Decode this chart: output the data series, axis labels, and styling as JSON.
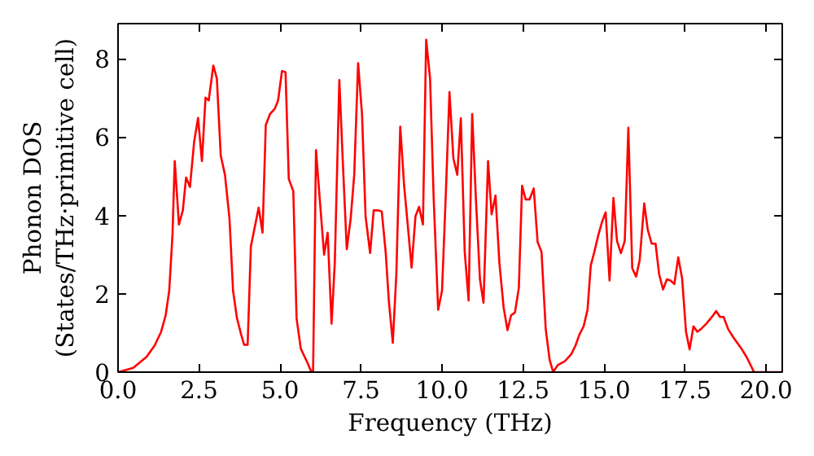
{
  "chart_data": {
    "type": "line",
    "xlabel": "Frequency (THz)",
    "ylabel": "Phonon DOS\n(States/THz·primitive cell)",
    "xlim": [
      0,
      20.5
    ],
    "ylim": [
      0,
      8.9
    ],
    "xticks": [
      {
        "value": 0,
        "label": "0.0"
      },
      2.5,
      {
        "value": 5,
        "label": "5.0"
      },
      7.5,
      {
        "value": 10,
        "label": "10.0"
      },
      12.5,
      {
        "value": 15,
        "label": "15.0"
      },
      17.5,
      {
        "value": 20,
        "label": "20.0"
      }
    ],
    "yticks": [
      0,
      2,
      4,
      6,
      8
    ],
    "grid": false,
    "marker": "none",
    "line_style": "solid",
    "series": [
      {
        "color": "#ff0000",
        "x": [
          0,
          0.47,
          0.88,
          1.13,
          1.33,
          1.47,
          1.58,
          1.68,
          1.75,
          1.88,
          2.0,
          2.1,
          2.22,
          2.35,
          2.47,
          2.59,
          2.7,
          2.8,
          2.94,
          3.05,
          3.17,
          3.3,
          3.44,
          3.55,
          3.67,
          3.8,
          3.89,
          4.0,
          4.1,
          4.22,
          4.34,
          4.46,
          4.56,
          4.69,
          4.84,
          4.94,
          5.06,
          5.17,
          5.27,
          5.41,
          5.51,
          5.64,
          5.84,
          5.97,
          6.02,
          6.11,
          6.22,
          6.36,
          6.47,
          6.59,
          6.69,
          6.83,
          6.94,
          7.06,
          7.18,
          7.29,
          7.41,
          7.53,
          7.64,
          7.78,
          7.89,
          8.03,
          8.14,
          8.26,
          8.36,
          8.48,
          8.59,
          8.71,
          8.83,
          8.94,
          9.06,
          9.18,
          9.29,
          9.41,
          9.51,
          9.63,
          9.74,
          9.88,
          10.0,
          10.12,
          10.23,
          10.35,
          10.47,
          10.58,
          10.7,
          10.82,
          10.93,
          11.05,
          11.17,
          11.28,
          11.42,
          11.53,
          11.65,
          11.77,
          11.9,
          12.02,
          12.13,
          12.25,
          12.37,
          12.47,
          12.58,
          12.7,
          12.83,
          12.95,
          13.07,
          13.2,
          13.32,
          13.43,
          13.57,
          13.79,
          13.99,
          14.12,
          14.24,
          14.37,
          14.49,
          14.59,
          14.7,
          14.82,
          14.94,
          15.05,
          15.17,
          15.29,
          15.4,
          15.52,
          15.64,
          15.75,
          15.87,
          15.99,
          16.1,
          16.24,
          16.35,
          16.47,
          16.59,
          16.7,
          16.82,
          16.94,
          17.05,
          17.17,
          17.29,
          17.41,
          17.53,
          17.64,
          17.76,
          17.88,
          17.99,
          18.16,
          18.33,
          18.46,
          18.58,
          18.69,
          18.83,
          18.99,
          19.24,
          19.41,
          19.63,
          20.5
        ],
        "values": [
          0,
          0.11,
          0.39,
          0.68,
          1.03,
          1.45,
          2.08,
          3.49,
          5.39,
          3.77,
          4.13,
          4.97,
          4.73,
          5.89,
          6.49,
          5.39,
          7.01,
          6.94,
          7.83,
          7.5,
          5.53,
          5.04,
          3.92,
          2.08,
          1.38,
          0.96,
          0.7,
          0.7,
          3.21,
          3.7,
          4.2,
          3.56,
          6.31,
          6.59,
          6.73,
          6.94,
          7.69,
          7.66,
          4.93,
          4.62,
          1.38,
          0.6,
          0.25,
          0,
          0,
          5.67,
          4.48,
          3.0,
          3.56,
          1.24,
          2.79,
          7.46,
          5.32,
          3.14,
          3.92,
          5.04,
          7.89,
          6.59,
          3.98,
          3.04,
          4.13,
          4.13,
          4.1,
          3.07,
          1.8,
          0.75,
          2.5,
          6.27,
          4.76,
          3.77,
          2.67,
          3.98,
          4.22,
          3.77,
          8.49,
          7.5,
          4.48,
          1.59,
          2.08,
          4.62,
          7.15,
          5.46,
          5.04,
          6.48,
          3.07,
          1.83,
          6.59,
          4.34,
          2.37,
          1.77,
          5.39,
          4.03,
          4.51,
          2.79,
          1.66,
          1.07,
          1.45,
          1.52,
          2.15,
          4.76,
          4.41,
          4.41,
          4.69,
          3.32,
          3.07,
          1.1,
          0.32,
          0,
          0.18,
          0.28,
          0.46,
          0.68,
          0.96,
          1.17,
          1.59,
          2.72,
          3.07,
          3.49,
          3.84,
          4.08,
          2.34,
          4.45,
          3.35,
          3.04,
          3.35,
          6.24,
          2.65,
          2.44,
          2.86,
          4.31,
          3.63,
          3.28,
          3.28,
          2.5,
          2.11,
          2.37,
          2.34,
          2.25,
          2.93,
          2.39,
          1.03,
          0.58,
          1.17,
          1.03,
          1.1,
          1.24,
          1.41,
          1.56,
          1.41,
          1.41,
          1.1,
          0.89,
          0.6,
          0.37,
          0,
          0
        ]
      }
    ]
  }
}
